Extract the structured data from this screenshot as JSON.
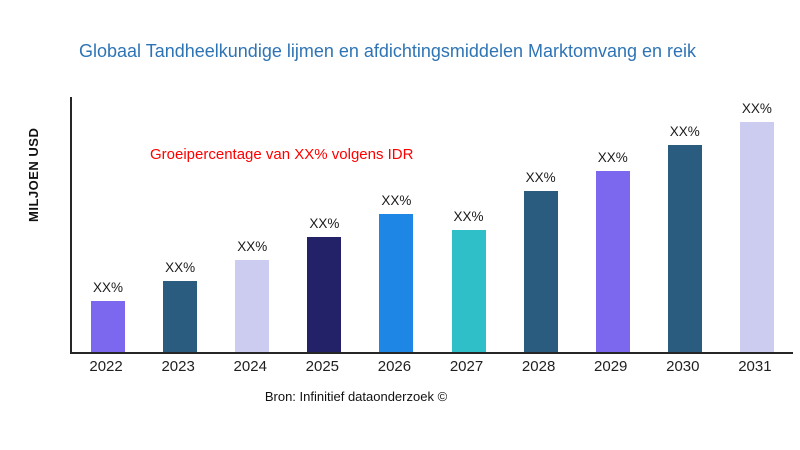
{
  "header": {
    "title": "Globaal Tandheelkundige lijmen en afdichtingsmiddelen Marktomvang en reik"
  },
  "annotation": {
    "text": "Groeipercentage van XX% volgens IDR",
    "color": "#FF0000"
  },
  "footer": {
    "source": "Bron: Infinitief dataonderzoek ©"
  },
  "colors": {
    "title": "#2E74B5",
    "axis": "#262626",
    "background": "#FFFFFF"
  },
  "chart_data": {
    "type": "bar",
    "title": "Globaal Tandheelkundige lijmen en afdichtingsmiddelen Marktomvang en reik",
    "ylabel": "MILJOEN USD",
    "xlabel": "",
    "categories": [
      "2022",
      "2023",
      "2024",
      "2025",
      "2026",
      "2027",
      "2028",
      "2029",
      "2030",
      "2031"
    ],
    "values": [
      22,
      31,
      40,
      50,
      60,
      53,
      70,
      79,
      90,
      100
    ],
    "values_note": "relative bar heights estimated from pixels (% of tallest bar, 2031); actual amounts are masked as XX% in the chart",
    "bar_labels": [
      "XX%",
      "XX%",
      "XX%",
      "XX%",
      "XX%",
      "XX%",
      "XX%",
      "XX%",
      "XX%",
      "XX%"
    ],
    "bar_colors": [
      "#7B68EE",
      "#295C7F",
      "#CBCCF0",
      "#232268",
      "#1E86E5",
      "#2FBFC9",
      "#295C7F",
      "#7B68EE",
      "#295C7F",
      "#CBCCF0"
    ],
    "ylim": [
      0,
      111
    ],
    "grid": false,
    "legend": null
  }
}
